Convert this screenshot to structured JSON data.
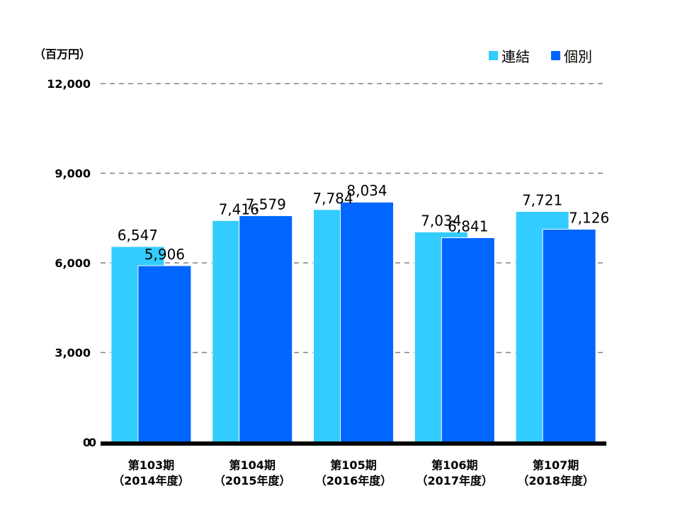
{
  "chart_data": {
    "type": "bar",
    "unit_label": "（百万円）",
    "categories": [
      [
        "第103期",
        "（2014年度）"
      ],
      [
        "第104期",
        "（2015年度）"
      ],
      [
        "第105期",
        "（2016年度）"
      ],
      [
        "第106期",
        "（2017年度）"
      ],
      [
        "第107期",
        "（2018年度）"
      ]
    ],
    "series": [
      {
        "name": "連結",
        "color": "#33ccff",
        "values": [
          6547,
          7416,
          7784,
          7034,
          7721
        ],
        "labels": [
          "6,547",
          "7,416",
          "7,784",
          "7,034",
          "7,721"
        ]
      },
      {
        "name": "個別",
        "color": "#0066ff",
        "values": [
          5906,
          7579,
          8034,
          6841,
          7126
        ],
        "labels": [
          "5,906",
          "7,579",
          "8,034",
          "6,841",
          "7,126"
        ]
      }
    ],
    "ylim": [
      0,
      12000
    ],
    "yticks": [
      0,
      3000,
      6000,
      9000,
      12000
    ],
    "ytick_labels": [
      "0",
      "3,000",
      "6,000",
      "9,000",
      "12,000"
    ],
    "grid": true,
    "grid_style": "dashed",
    "legend_position": "top-right"
  }
}
